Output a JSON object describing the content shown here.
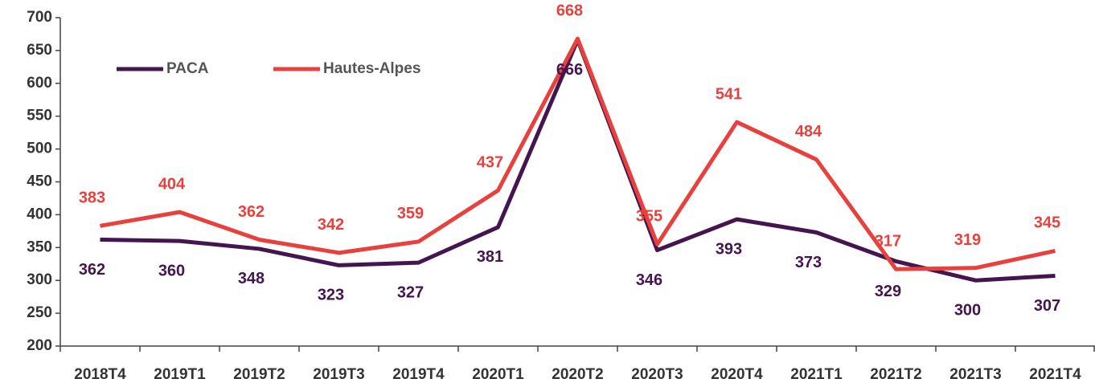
{
  "chart_data": {
    "type": "line",
    "categories": [
      "2018T4",
      "2019T1",
      "2019T2",
      "2019T3",
      "2019T4",
      "2020T1",
      "2020T2",
      "2020T3",
      "2020T4",
      "2021T1",
      "2021T2",
      "2021T3",
      "2021T4"
    ],
    "series": [
      {
        "name": "PACA",
        "color": "#44154f",
        "values": [
          362,
          360,
          348,
          323,
          327,
          381,
          666,
          346,
          393,
          373,
          329,
          300,
          307
        ]
      },
      {
        "name": "Hautes-Alpes",
        "color": "#e8413d",
        "values": [
          383,
          404,
          362,
          342,
          359,
          437,
          668,
          355,
          541,
          484,
          317,
          319,
          345
        ]
      }
    ],
    "ylim": [
      200,
      700
    ],
    "yticks": [
      200,
      250,
      300,
      350,
      400,
      450,
      500,
      550,
      600,
      650,
      700
    ],
    "grid": false,
    "legend": "upper left"
  }
}
